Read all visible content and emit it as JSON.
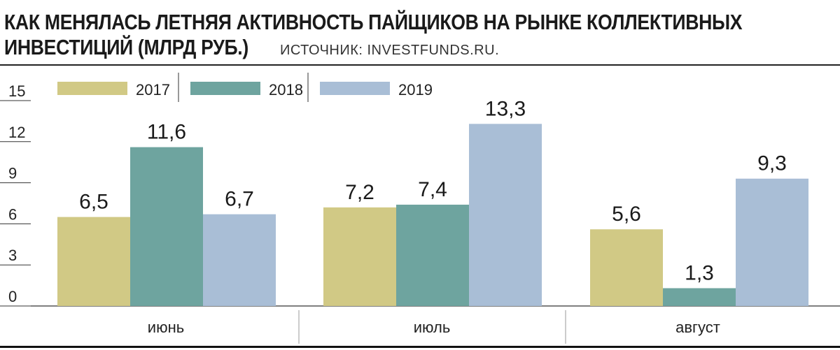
{
  "title_line1": "КАК МЕНЯЛАСЬ ЛЕТНЯЯ АКТИВНОСТЬ ПАЙЩИКОВ НА РЫНКЕ КОЛЛЕКТИВНЫХ",
  "title_line2": "ИНВЕСТИЦИЙ (МЛРД РУБ.)",
  "source": "ИСТОЧНИК: INVESTFUNDS.RU.",
  "chart_data": {
    "type": "bar",
    "categories": [
      "июнь",
      "июль",
      "август"
    ],
    "series": [
      {
        "name": "2017",
        "color": "#d1c985",
        "values": [
          6.5,
          7.2,
          5.6
        ],
        "labels": [
          "6,5",
          "7,2",
          "5,6"
        ]
      },
      {
        "name": "2018",
        "color": "#6ea49f",
        "values": [
          11.6,
          7.4,
          1.3
        ],
        "labels": [
          "11,6",
          "7,4",
          "1,3"
        ]
      },
      {
        "name": "2019",
        "color": "#a9bed6",
        "values": [
          6.7,
          13.3,
          9.3
        ],
        "labels": [
          "6,7",
          "13,3",
          "9,3"
        ]
      }
    ],
    "yticks": [
      "0",
      "3",
      "6",
      "9",
      "12",
      "15"
    ],
    "ylim": [
      0,
      15
    ],
    "legend": "top-left",
    "grid": false
  }
}
